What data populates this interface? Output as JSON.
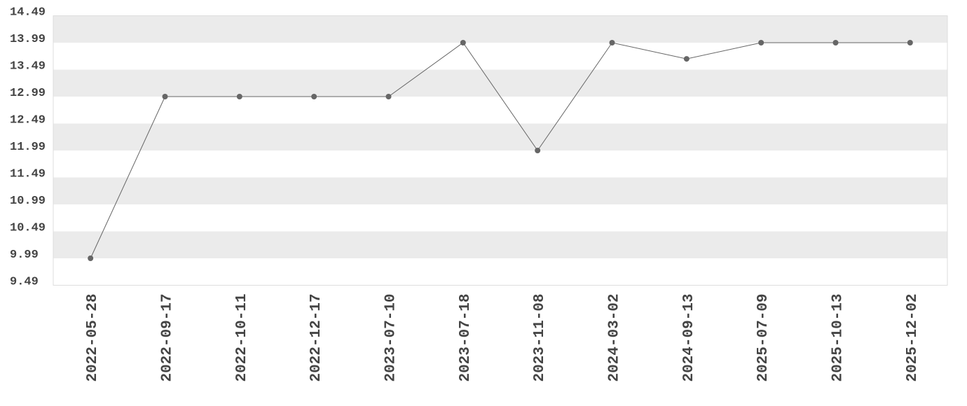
{
  "chart_data": {
    "type": "line",
    "categories": [
      "2022-05-28",
      "2022-09-17",
      "2022-10-11",
      "2022-12-17",
      "2023-07-10",
      "2023-07-18",
      "2023-11-08",
      "2024-03-02",
      "2024-09-13",
      "2025-07-09",
      "2025-10-13",
      "2025-12-02"
    ],
    "values": [
      9.99,
      12.99,
      12.99,
      12.99,
      12.99,
      13.99,
      11.99,
      13.99,
      13.69,
      13.99,
      13.99,
      13.99
    ],
    "color": "#666666",
    "ylim": [
      9.49,
      14.49
    ],
    "yticks": [
      9.49,
      9.99,
      10.49,
      10.99,
      11.49,
      11.99,
      12.49,
      12.99,
      13.49,
      13.99,
      14.49
    ],
    "grid": true,
    "band_color": "#ebebeb"
  }
}
